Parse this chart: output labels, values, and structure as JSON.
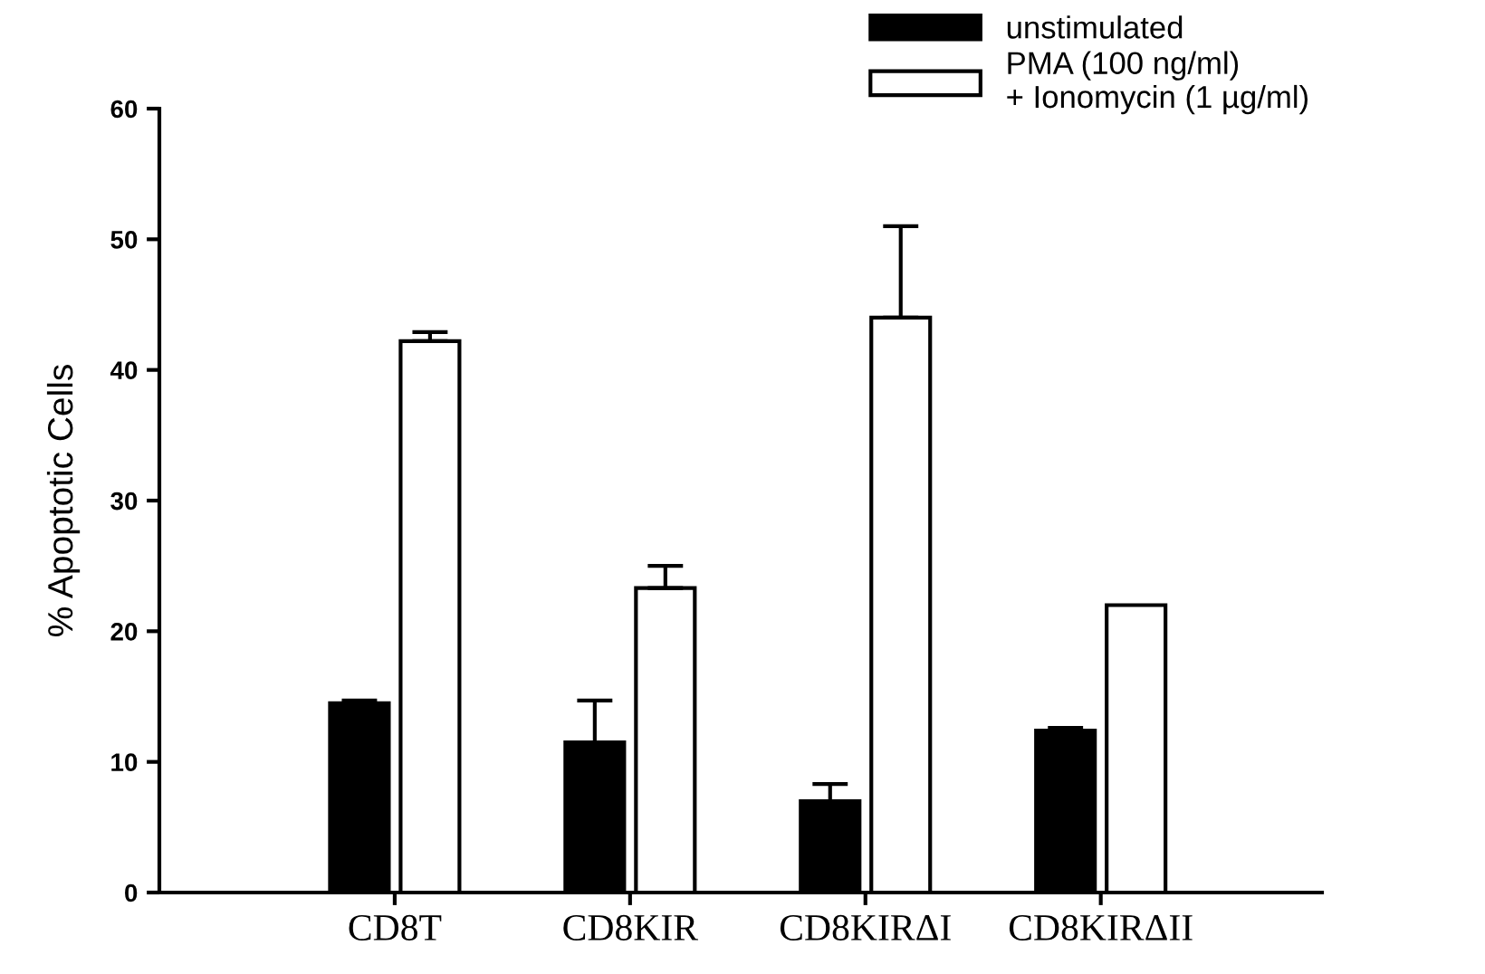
{
  "chart_data": {
    "type": "bar",
    "ylabel": "% Apoptotic Cells",
    "categories": [
      "CD8T",
      "CD8KIR",
      "CD8KIRΔI",
      "CD8KIRΔII"
    ],
    "series": [
      {
        "name": "unstimulated",
        "color": "#000000",
        "values": [
          14.5,
          11.5,
          7.0,
          12.4
        ],
        "errors": [
          [
            14.5,
            14.7
          ],
          [
            11.5,
            14.7
          ],
          [
            7.0,
            8.3
          ],
          [
            12.4,
            12.6
          ]
        ]
      },
      {
        "name": "PMA (100 ng/ml)\n+ Ionomycin (1 µg/ml)",
        "color": "#ffffff",
        "values": [
          42.2,
          23.3,
          44.0,
          22.0
        ],
        "errors": [
          [
            42.2,
            42.9
          ],
          [
            23.3,
            25.0
          ],
          [
            44.0,
            51.0
          ],
          null
        ]
      }
    ],
    "ylim": [
      0,
      60
    ],
    "yticks": [
      0,
      10,
      20,
      30,
      40,
      50,
      60
    ],
    "grid": false,
    "legend": "top right"
  }
}
